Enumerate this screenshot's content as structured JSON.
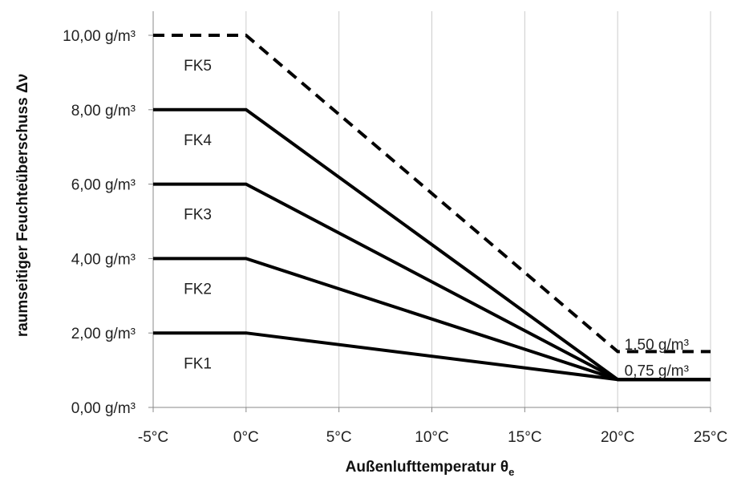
{
  "chart_data": {
    "type": "line",
    "xlabel": "Außenlufttemperatur θ",
    "xlabel_subscript": "e",
    "ylabel": "raumseitiger Feuchteüberschuss Δν",
    "xlim": [
      -5,
      25
    ],
    "ylim": [
      0,
      10
    ],
    "x_ticks": [
      -5,
      0,
      5,
      10,
      15,
      20,
      25
    ],
    "x_tick_labels": [
      "-5°C",
      "0°C",
      "5°C",
      "10°C",
      "15°C",
      "20°C",
      "25°C"
    ],
    "y_ticks": [
      0,
      2,
      4,
      6,
      8,
      10
    ],
    "y_tick_labels": [
      "0,00 g/m³",
      "2,00 g/m³",
      "4,00 g/m³",
      "6,00 g/m³",
      "8,00 g/m³",
      "10,00 g/m³"
    ],
    "grid": "vertical",
    "series": [
      {
        "x": [
          -5,
          0,
          20,
          25
        ],
        "y": [
          2,
          2,
          0.75,
          0.75
        ],
        "style": "solid"
      },
      {
        "x": [
          -5,
          0,
          20,
          25
        ],
        "y": [
          4,
          4,
          0.75,
          0.75
        ],
        "style": "solid"
      },
      {
        "x": [
          -5,
          0,
          20,
          25
        ],
        "y": [
          6,
          6,
          0.75,
          0.75
        ],
        "style": "solid"
      },
      {
        "x": [
          -5,
          0,
          20,
          25
        ],
        "y": [
          8,
          8,
          0.75,
          0.75
        ],
        "style": "solid"
      },
      {
        "x": [
          -5,
          0,
          20,
          25
        ],
        "y": [
          10,
          10,
          1.5,
          1.5
        ],
        "style": "dashed"
      }
    ],
    "region_labels": [
      {
        "text": "FK1",
        "x": -2.6,
        "y": 1.2
      },
      {
        "text": "FK2",
        "x": -2.6,
        "y": 3.2
      },
      {
        "text": "FK3",
        "x": -2.6,
        "y": 5.2
      },
      {
        "text": "FK4",
        "x": -2.6,
        "y": 7.2
      },
      {
        "text": "FK5",
        "x": -2.6,
        "y": 9.2
      }
    ],
    "annotations": [
      {
        "text": "1,50 g/m³",
        "x": 22.1,
        "y": 1.7
      },
      {
        "text": "0,75 g/m³",
        "x": 22.1,
        "y": 1.0
      }
    ],
    "colors": {
      "line": "#000000",
      "grid": "#cccccc",
      "axis": "#888888"
    }
  }
}
